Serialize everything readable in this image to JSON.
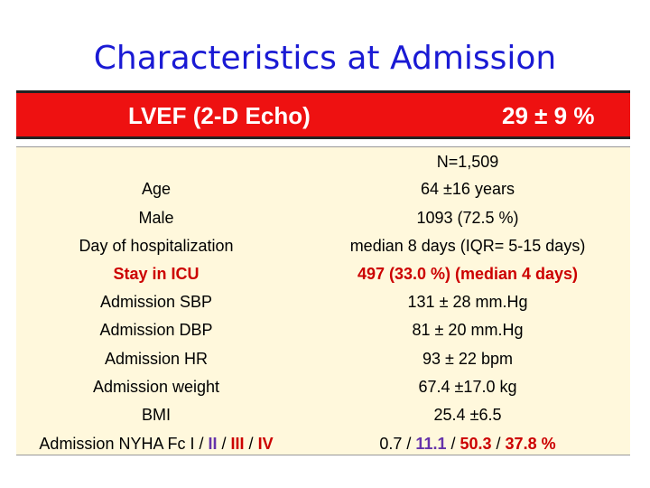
{
  "title": "Characteristics at Admission",
  "highlight": {
    "label": "LVEF (2-D Echo)",
    "value": "29 ± 9 %"
  },
  "table": {
    "n_label": "N=1,509",
    "rows": [
      {
        "label": "Age",
        "value": "64 ±16 years"
      },
      {
        "label": "Male",
        "value": "1093 (72.5 %)"
      },
      {
        "label": "Day of hospitalization",
        "value": "median 8 days (IQR= 5-15 days)"
      },
      {
        "label": "Stay in ICU",
        "value": "497 (33.0 %) (median 4 days)"
      },
      {
        "label": "Admission SBP",
        "value": "131 ± 28 mm.Hg"
      },
      {
        "label": "Admission DBP",
        "value": "81 ± 20 mm.Hg"
      },
      {
        "label": "Admission HR",
        "value": "93 ± 22 bpm"
      },
      {
        "label": "Admission weight",
        "value": "67.4 ±17.0 kg"
      },
      {
        "label": "BMI",
        "value": "25.4 ±6.5"
      }
    ],
    "nyha": {
      "label_prefix": "Admission NYHA Fc ",
      "classes": [
        "I",
        "II",
        "III",
        "IV"
      ],
      "values": [
        "0.7",
        "11.1",
        "50.3",
        "37.8"
      ],
      "separator": " / ",
      "unit": " %"
    }
  },
  "colors": {
    "title": "#1a1ad4",
    "highlight_bg": "#ee1111",
    "table_bg": "#fff8dc",
    "accent_red": "#cc0000",
    "accent_purple": "#6633aa"
  }
}
